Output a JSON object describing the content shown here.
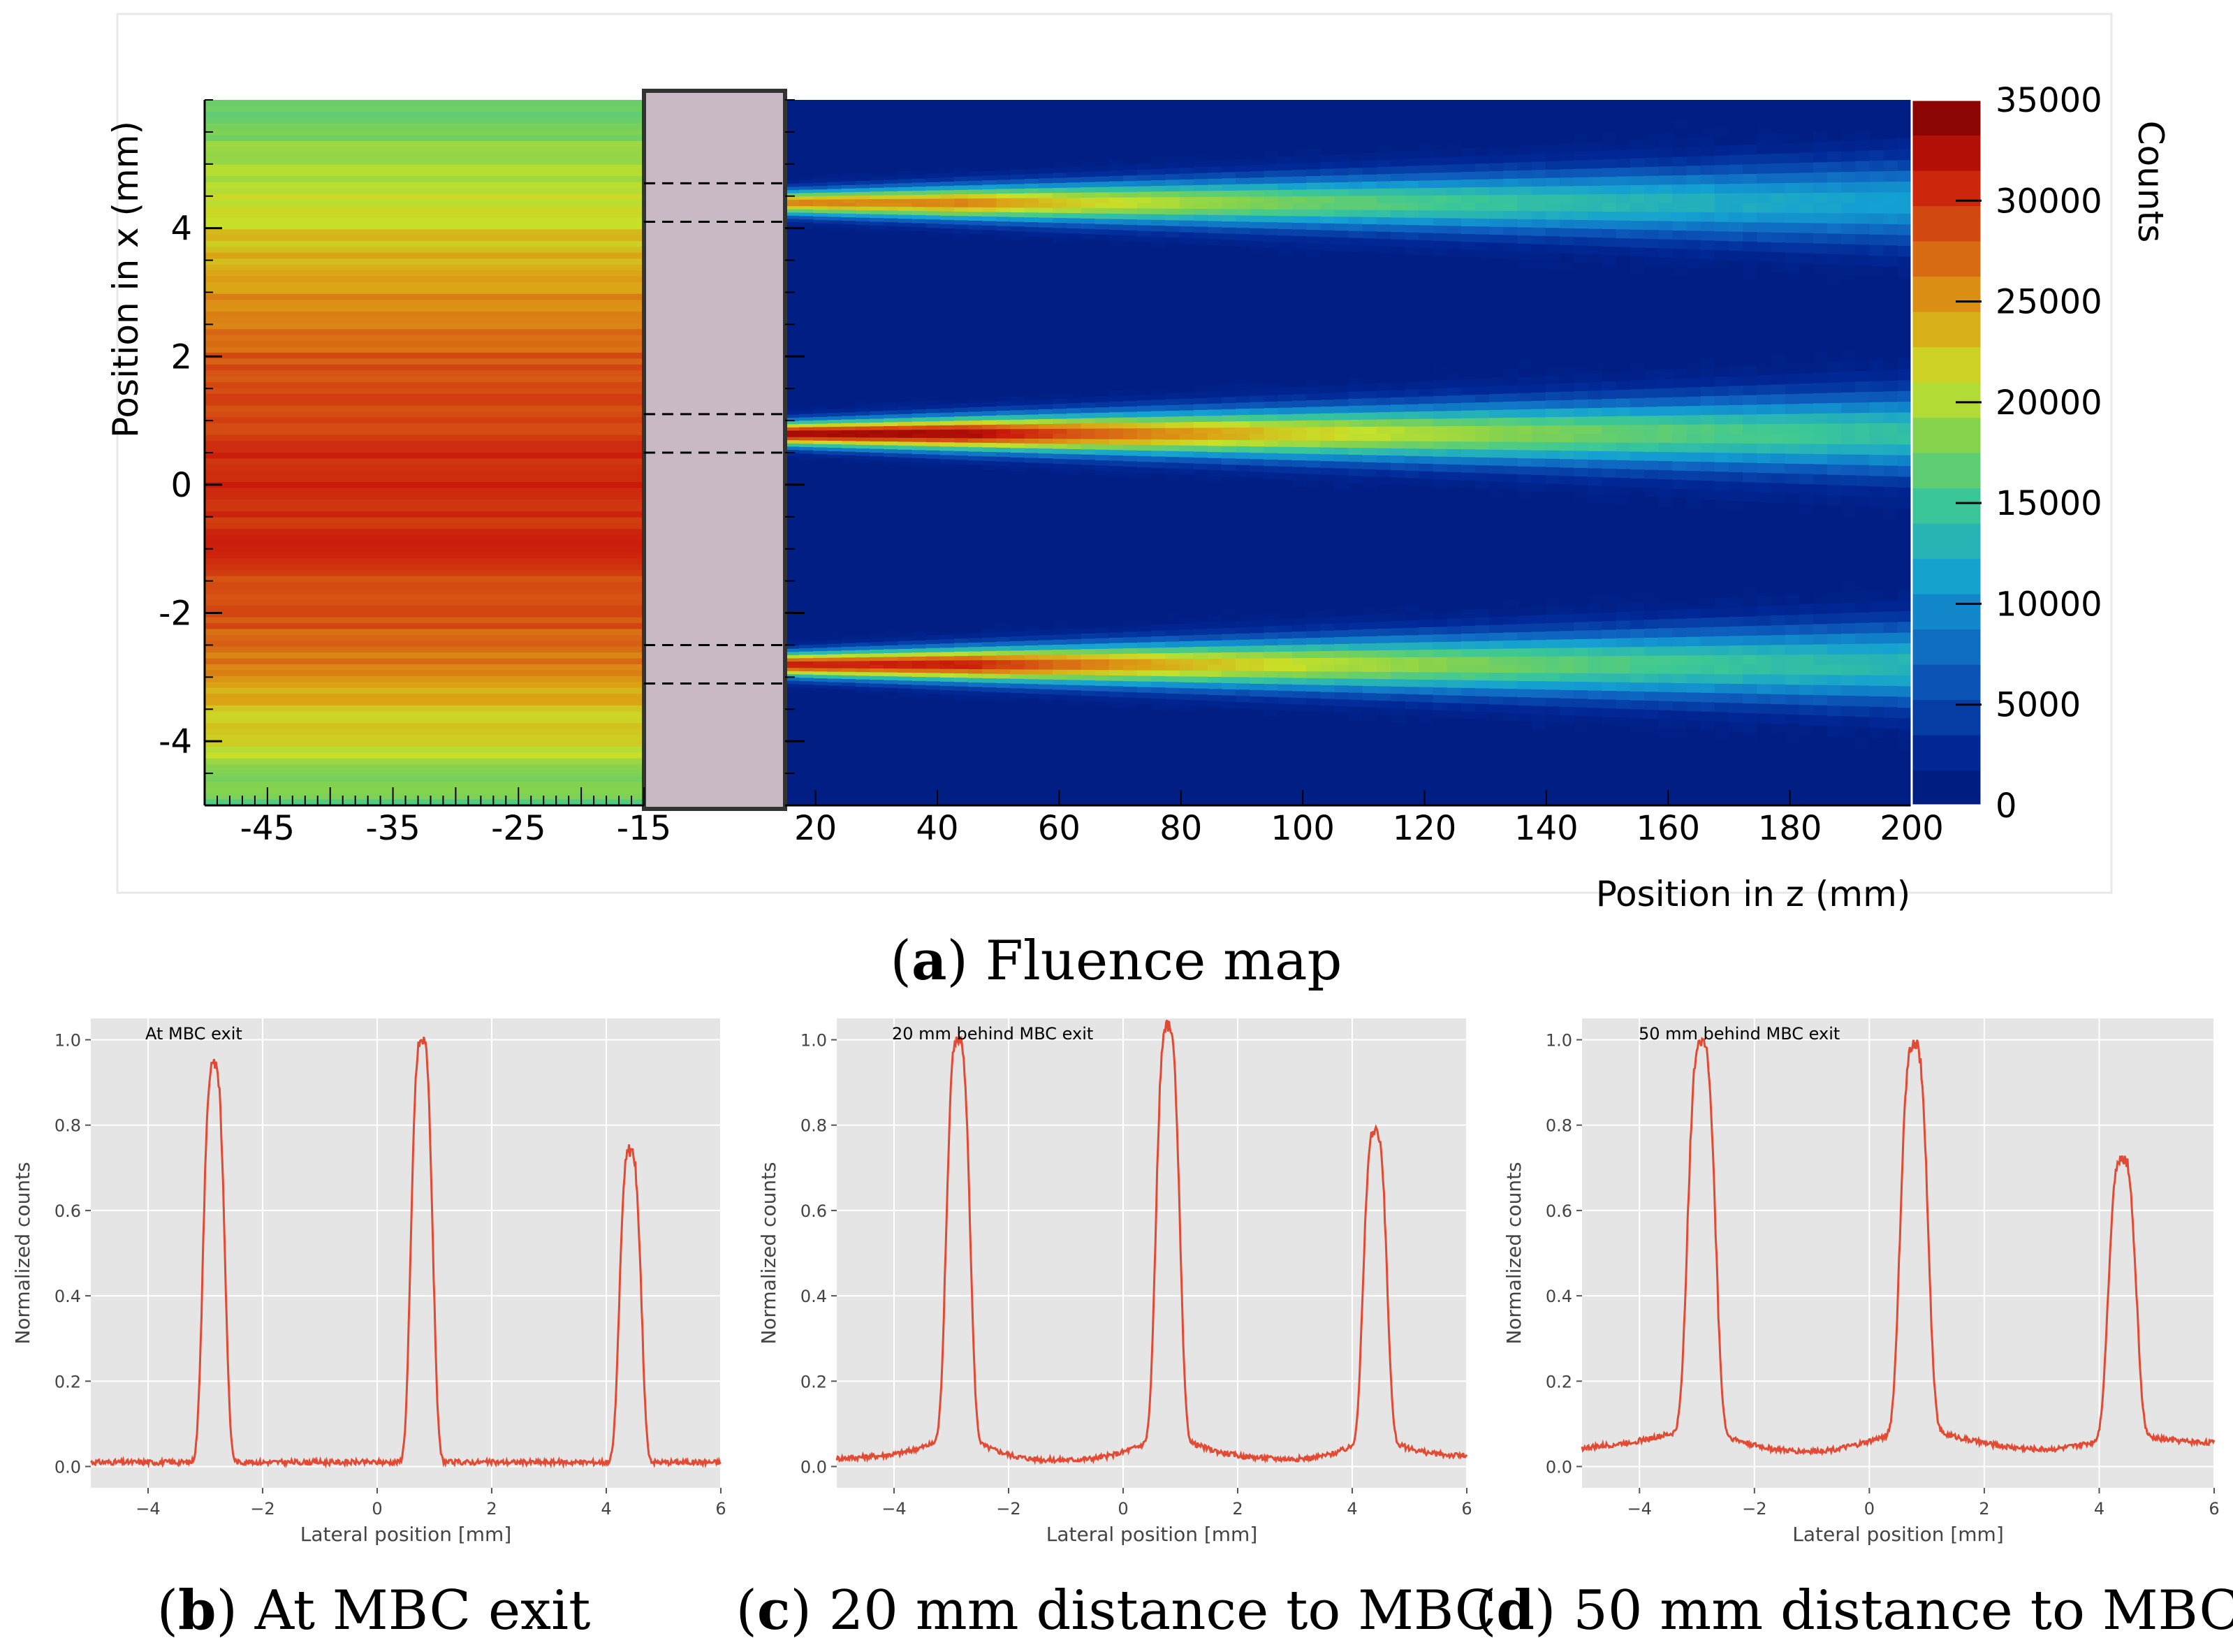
{
  "chart_data": [
    {
      "type": "heatmap",
      "title": "Fluence map",
      "caption": {
        "letter": "a",
        "text": "Fluence map"
      },
      "xlabel": "Position in z (mm)",
      "ylabel": "Position in x (mm)",
      "colorbar_label": "Counts",
      "colorbar_ticks": [
        "0",
        "5000",
        "10000",
        "15000",
        "20000",
        "25000",
        "30000",
        "35000"
      ],
      "xticks_left": [
        "-45",
        "-35",
        "-25",
        "-15"
      ],
      "xticks_right": [
        "20",
        "40",
        "60",
        "80",
        "100",
        "120",
        "140",
        "160",
        "180",
        "200"
      ],
      "yticks": [
        "4",
        "2",
        "0",
        "-2",
        "-4"
      ],
      "zlim": [
        0,
        35000
      ],
      "upstream_profile": [
        [
          -4.9,
          17000
        ],
        [
          -4.5,
          19000
        ],
        [
          -4.0,
          21500
        ],
        [
          -3.5,
          23000
        ],
        [
          -3.0,
          25000
        ],
        [
          -2.5,
          27500
        ],
        [
          -2.0,
          28500
        ],
        [
          -1.0,
          30000
        ],
        [
          0.0,
          30500
        ],
        [
          1.0,
          29500
        ],
        [
          2.0,
          28000
        ],
        [
          2.5,
          26500
        ],
        [
          3.0,
          25000
        ],
        [
          3.5,
          23500
        ],
        [
          4.0,
          22000
        ],
        [
          4.5,
          21000
        ],
        [
          5.0,
          19500
        ],
        [
          5.5,
          18000
        ],
        [
          6.0,
          17000
        ]
      ],
      "beamlets": [
        {
          "center_mm": 4.4,
          "peak_counts": 24000
        },
        {
          "center_mm": 0.8,
          "peak_counts": 31000
        },
        {
          "center_mm": -2.8,
          "peak_counts": 29000
        }
      ],
      "collimator_slits_mm": [
        [
          4.1,
          4.7
        ],
        [
          0.5,
          1.1
        ],
        [
          -3.1,
          -2.5
        ]
      ]
    },
    {
      "type": "line",
      "caption": {
        "letter": "b",
        "text": "At MBC exit"
      },
      "annotation": "At MBC exit",
      "xlabel": "Lateral position [mm]",
      "ylabel": "Normalized counts",
      "xlim": [
        -5,
        6
      ],
      "ylim": [
        -0.05,
        1.05
      ],
      "xticks": [
        "−4",
        "−2",
        "0",
        "2",
        "4",
        "6"
      ],
      "yticks": [
        "0.0",
        "0.2",
        "0.4",
        "0.6",
        "0.8",
        "1.0"
      ],
      "peaks": [
        {
          "x": -2.85,
          "height": 0.94,
          "width": 0.22
        },
        {
          "x": 0.78,
          "height": 1.0,
          "width": 0.22
        },
        {
          "x": 4.42,
          "height": 0.74,
          "width": 0.22
        }
      ],
      "baseline": 0.01,
      "shoulder": 0.0,
      "tail": 0.0
    },
    {
      "type": "line",
      "caption": {
        "letter": "c",
        "text": "20 mm distance to MBC"
      },
      "annotation": "20 mm behind MBC exit",
      "xlabel": "Lateral position [mm]",
      "ylabel": "Normalized counts",
      "xlim": [
        -5,
        6
      ],
      "ylim": [
        -0.05,
        1.05
      ],
      "xticks": [
        "−4",
        "−2",
        "0",
        "2",
        "4",
        "6"
      ],
      "yticks": [
        "0.0",
        "0.2",
        "0.4",
        "0.6",
        "0.8",
        "1.0"
      ],
      "peaks": [
        {
          "x": -2.88,
          "height": 0.96,
          "width": 0.24
        },
        {
          "x": 0.78,
          "height": 0.99,
          "width": 0.24
        },
        {
          "x": 4.4,
          "height": 0.75,
          "width": 0.24
        }
      ],
      "baseline": 0.02,
      "shoulder": 0.04,
      "tail": 0.01
    },
    {
      "type": "line",
      "caption": {
        "letter": "d",
        "text": "50 mm distance to MBC"
      },
      "annotation": "50 mm behind MBC exit",
      "xlabel": "Lateral position [mm]",
      "ylabel": "Normalized counts",
      "xlim": [
        -5,
        6
      ],
      "ylim": [
        -0.05,
        1.05
      ],
      "xticks": [
        "−4",
        "−2",
        "0",
        "2",
        "4",
        "6"
      ],
      "yticks": [
        "0.0",
        "0.2",
        "0.4",
        "0.6",
        "0.8",
        "1.0"
      ],
      "peaks": [
        {
          "x": -2.92,
          "height": 0.96,
          "width": 0.28
        },
        {
          "x": 0.78,
          "height": 0.95,
          "width": 0.28
        },
        {
          "x": 4.4,
          "height": 0.7,
          "width": 0.28
        }
      ],
      "baseline": 0.045,
      "shoulder": 0.03,
      "tail": 0.02
    }
  ]
}
